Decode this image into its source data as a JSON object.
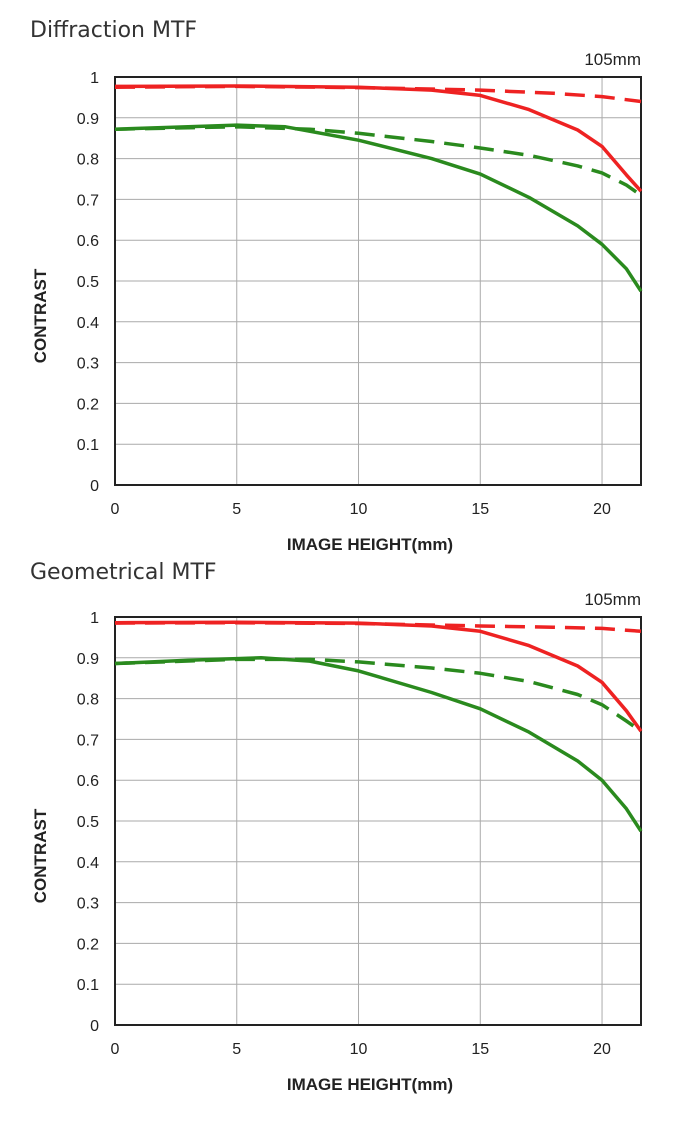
{
  "colors": {
    "sagittal_or_10lpmm": "#ee2222",
    "green": "#2a8a1e",
    "grid": "#aaaaaa",
    "axis": "#222222"
  },
  "chart_data": [
    {
      "type": "line",
      "title": "Diffraction MTF",
      "focal_length": "105mm",
      "xlabel": "IMAGE HEIGHT(mm)",
      "ylabel": "CONTRAST",
      "xlim": [
        0,
        21.6
      ],
      "ylim": [
        0,
        1
      ],
      "xticks": [
        "0",
        "5",
        "10",
        "15",
        "20"
      ],
      "yticks": [
        "0",
        "0.1",
        "0.2",
        "0.3",
        "0.4",
        "0.5",
        "0.6",
        "0.7",
        "0.8",
        "0.9",
        "1"
      ],
      "grid": true,
      "series": [
        {
          "color": "#ee2222",
          "dash": false,
          "x": [
            0,
            5,
            10,
            13,
            15,
            17,
            19,
            20,
            21,
            21.6
          ],
          "y": [
            0.977,
            0.978,
            0.975,
            0.968,
            0.955,
            0.92,
            0.87,
            0.83,
            0.76,
            0.72
          ]
        },
        {
          "color": "#ee2222",
          "dash": true,
          "x": [
            0,
            5,
            10,
            15,
            18,
            20,
            21.6
          ],
          "y": [
            0.975,
            0.977,
            0.974,
            0.968,
            0.96,
            0.952,
            0.94
          ]
        },
        {
          "color": "#2a8a1e",
          "dash": false,
          "x": [
            0,
            3,
            5,
            7,
            10,
            13,
            15,
            17,
            19,
            20,
            21,
            21.6
          ],
          "y": [
            0.872,
            0.878,
            0.882,
            0.878,
            0.845,
            0.8,
            0.762,
            0.705,
            0.635,
            0.59,
            0.53,
            0.475
          ]
        },
        {
          "color": "#2a8a1e",
          "dash": true,
          "x": [
            0,
            5,
            8,
            10,
            13,
            15,
            17,
            19,
            20,
            21,
            21.6
          ],
          "y": [
            0.872,
            0.878,
            0.872,
            0.862,
            0.842,
            0.826,
            0.808,
            0.782,
            0.765,
            0.735,
            0.71
          ]
        }
      ]
    },
    {
      "type": "line",
      "title": "Geometrical MTF",
      "focal_length": "105mm",
      "xlabel": "IMAGE HEIGHT(mm)",
      "ylabel": "CONTRAST",
      "xlim": [
        0,
        21.6
      ],
      "ylim": [
        0,
        1
      ],
      "xticks": [
        "0",
        "5",
        "10",
        "15",
        "20"
      ],
      "yticks": [
        "0",
        "0.1",
        "0.2",
        "0.3",
        "0.4",
        "0.5",
        "0.6",
        "0.7",
        "0.8",
        "0.9",
        "1"
      ],
      "grid": true,
      "series": [
        {
          "color": "#ee2222",
          "dash": false,
          "x": [
            0,
            5,
            10,
            13,
            15,
            17,
            19,
            20,
            21,
            21.6
          ],
          "y": [
            0.986,
            0.987,
            0.985,
            0.978,
            0.965,
            0.93,
            0.88,
            0.84,
            0.77,
            0.72
          ]
        },
        {
          "color": "#ee2222",
          "dash": true,
          "x": [
            0,
            5,
            10,
            15,
            18,
            20,
            21.6
          ],
          "y": [
            0.985,
            0.986,
            0.984,
            0.978,
            0.975,
            0.972,
            0.965
          ]
        },
        {
          "color": "#2a8a1e",
          "dash": false,
          "x": [
            0,
            3,
            5,
            6,
            8,
            10,
            13,
            15,
            17,
            19,
            20,
            21,
            21.6
          ],
          "y": [
            0.886,
            0.894,
            0.898,
            0.9,
            0.892,
            0.868,
            0.815,
            0.775,
            0.718,
            0.647,
            0.6,
            0.53,
            0.475
          ]
        },
        {
          "color": "#2a8a1e",
          "dash": true,
          "x": [
            0,
            5,
            8,
            10,
            13,
            15,
            17,
            19,
            20,
            21,
            21.6
          ],
          "y": [
            0.886,
            0.896,
            0.896,
            0.89,
            0.875,
            0.862,
            0.842,
            0.81,
            0.785,
            0.745,
            0.72
          ]
        }
      ]
    }
  ]
}
